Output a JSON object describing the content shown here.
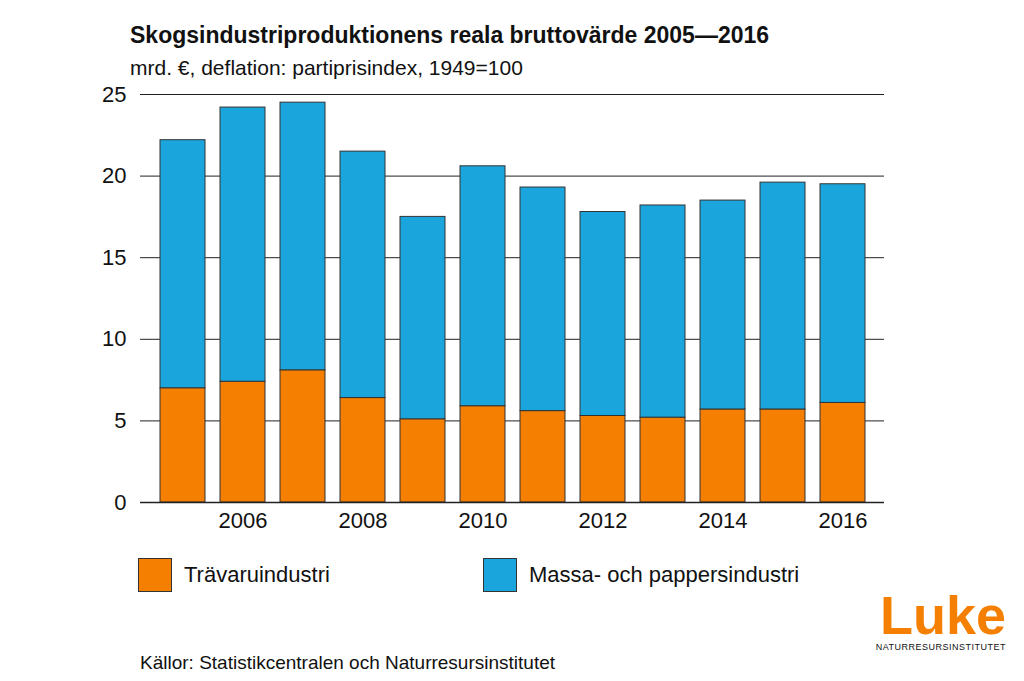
{
  "chart_data": {
    "type": "bar",
    "stacked": true,
    "title": "Skogsindustriproduktionens reala bruttovärde 2005—2016",
    "subtitle": "mrd. €, deflation: partiprisindex, 1949=100",
    "source": "Källor: Statistikcentralen och Naturresursinstitutet",
    "logo": [
      "Luke",
      "NATURRESURSINSTITUTET"
    ],
    "categories": [
      null,
      "2006",
      null,
      "2008",
      null,
      "2010",
      null,
      "2012",
      null,
      "2014",
      null,
      "2016"
    ],
    "series": [
      {
        "name": "Trävaruindustri",
        "color": "#f47f00",
        "values": [
          7.0,
          7.4,
          8.1,
          6.4,
          5.1,
          5.9,
          5.6,
          5.3,
          5.2,
          5.7,
          5.7,
          6.1
        ]
      },
      {
        "name": "Massa- och pappersindustri",
        "color": "#1aa6dd",
        "values": [
          15.2,
          16.8,
          16.4,
          15.1,
          12.4,
          14.7,
          13.7,
          12.5,
          13.0,
          12.8,
          13.9,
          13.4
        ]
      }
    ],
    "ylim": [
      0,
      25
    ],
    "yticks": [
      0,
      5,
      10,
      15,
      20,
      25
    ],
    "grid": true,
    "legend": "bottom"
  }
}
